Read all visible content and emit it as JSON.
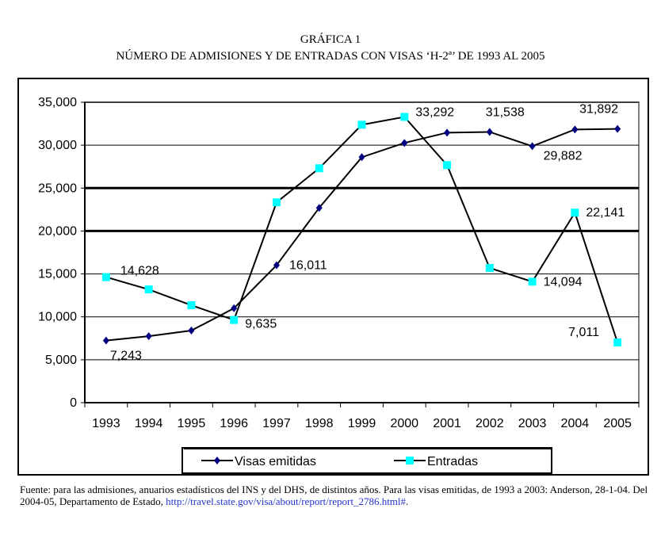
{
  "chart_data": {
    "type": "line",
    "title": "GRÁFICA 1",
    "subtitle": "NÚMERO DE ADMISIONES Y DE ENTRADAS CON VISAS ‘H-2ª’ DE 1993 AL 2005",
    "xlabel": "",
    "ylabel": "",
    "ylim": [
      0,
      35000
    ],
    "yticks": [
      "0",
      "5,000",
      "10,000",
      "15,000",
      "20,000",
      "25,000",
      "30,000",
      "35,000"
    ],
    "categories": [
      "1993",
      "1994",
      "1995",
      "1996",
      "1997",
      "1998",
      "1999",
      "2000",
      "2001",
      "2002",
      "2003",
      "2004",
      "2005"
    ],
    "grid": true,
    "legend": "bottom",
    "series": [
      {
        "name": "Visas emitidas",
        "color": "#000080",
        "marker": "diamond",
        "values": [
          7243,
          7750,
          8400,
          11000,
          16011,
          22700,
          28600,
          30260,
          31460,
          31538,
          29882,
          31830,
          31892
        ],
        "labels": {
          "0": "7,243",
          "4": "16,011",
          "9": "31,538",
          "10": "29,882",
          "12": "31,892"
        }
      },
      {
        "name": "Entradas",
        "color": "#00ffff",
        "marker": "square",
        "values": [
          14628,
          13190,
          11350,
          9635,
          23340,
          27310,
          32380,
          33292,
          27680,
          15690,
          14094,
          22141,
          7011
        ],
        "labels": {
          "0": "14,628",
          "3": "9,635",
          "7": "33,292",
          "10": "14,094",
          "11": "22,141",
          "12": "7,011"
        }
      }
    ]
  },
  "footnote": {
    "text": "Fuente: para las admisiones, anuarios estadísticos del INS y del DHS, de distintos años. Para las visas emitidas, de 1993 a 2003: Anderson, 28-1-04. Del 2004-05, Departamento de Estado, ",
    "link": "http://travel.state.gov/visa/about/report/report_2786.html#",
    "end": "."
  }
}
